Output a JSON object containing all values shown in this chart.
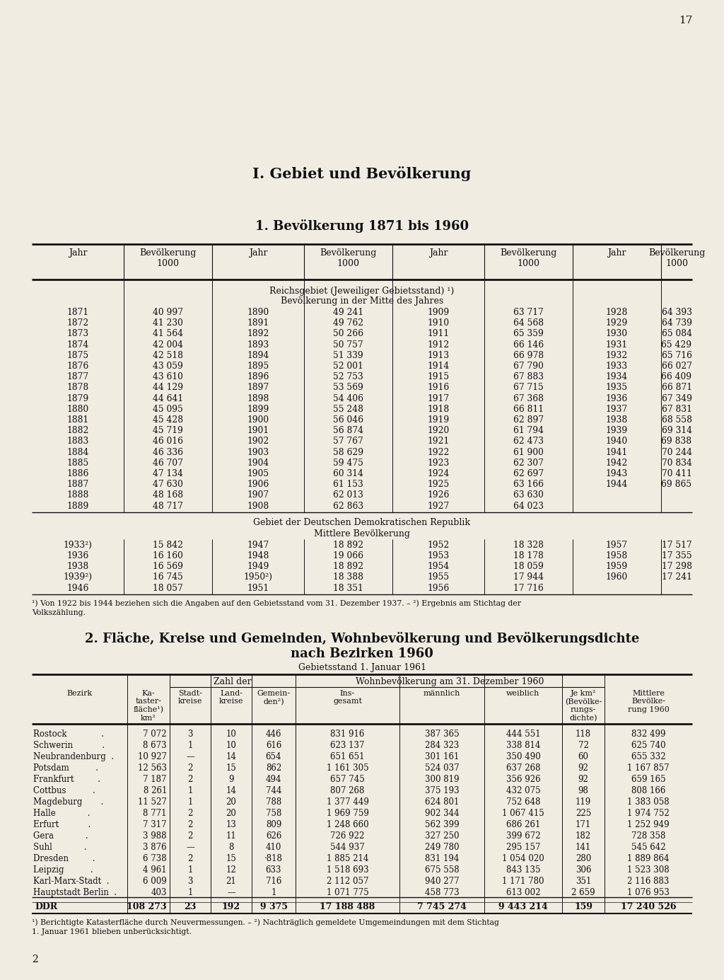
{
  "page_number": "17",
  "chapter_title": "I. Gebiet und Bevölkerung",
  "section1_title": "1. Bevölkerung 1871 bis 1960",
  "table1_headers_top": [
    "Jahr",
    "Bevölkerung\n1000",
    "Jahr",
    "Bevölkerung\n1000",
    "Jahr",
    "Bevölkerung\n1000",
    "Jahr",
    "Bevölkerung\n1000"
  ],
  "reichsgebiet_label": "Reichsgebiet (Jeweiliger Gebietsstand) ¹)",
  "bevoelkerung_label": "Bevölkerung in der Mitte des Jahres",
  "table1_data_col1": [
    [
      "1871",
      "40 997"
    ],
    [
      "1872",
      "41 230"
    ],
    [
      "1873",
      "41 564"
    ],
    [
      "1874",
      "42 004"
    ],
    [
      "1875",
      "42 518"
    ],
    [
      "1876",
      "43 059"
    ],
    [
      "1877",
      "43 610"
    ],
    [
      "1878",
      "44 129"
    ],
    [
      "1879",
      "44 641"
    ],
    [
      "1880",
      "45 095"
    ],
    [
      "1881",
      "45 428"
    ],
    [
      "1882",
      "45 719"
    ],
    [
      "1883",
      "46 016"
    ],
    [
      "1884",
      "46 336"
    ],
    [
      "1885",
      "46 707"
    ],
    [
      "1886",
      "47 134"
    ],
    [
      "1887",
      "47 630"
    ],
    [
      "1888",
      "48 168"
    ],
    [
      "1889",
      "48 717"
    ]
  ],
  "table1_data_col2": [
    [
      "1890",
      "49 241"
    ],
    [
      "1891",
      "49 762"
    ],
    [
      "1892",
      "50 266"
    ],
    [
      "1893",
      "50 757"
    ],
    [
      "1894",
      "51 339"
    ],
    [
      "1895",
      "52 001"
    ],
    [
      "1896",
      "52 753"
    ],
    [
      "1897",
      "53 569"
    ],
    [
      "1898",
      "54 406"
    ],
    [
      "1899",
      "55 248"
    ],
    [
      "1900",
      "56 046"
    ],
    [
      "1901",
      "56 874"
    ],
    [
      "1902",
      "57 767"
    ],
    [
      "1903",
      "58 629"
    ],
    [
      "1904",
      "59 475"
    ],
    [
      "1905",
      "60 314"
    ],
    [
      "1906",
      "61 153"
    ],
    [
      "1907",
      "62 013"
    ],
    [
      "1908",
      "62 863"
    ]
  ],
  "table1_data_col3": [
    [
      "1909",
      "63 717"
    ],
    [
      "1910",
      "64 568"
    ],
    [
      "1911",
      "65 359"
    ],
    [
      "1912",
      "66 146"
    ],
    [
      "1913",
      "66 978"
    ],
    [
      "1914",
      "67 790"
    ],
    [
      "1915",
      "67 883"
    ],
    [
      "1916",
      "67 715"
    ],
    [
      "1917",
      "67 368"
    ],
    [
      "1918",
      "66 811"
    ],
    [
      "1919",
      "62 897"
    ],
    [
      "1920",
      "61 794"
    ],
    [
      "1921",
      "62 473"
    ],
    [
      "1922",
      "61 900"
    ],
    [
      "1923",
      "62 307"
    ],
    [
      "1924",
      "62 697"
    ],
    [
      "1925",
      "63 166"
    ],
    [
      "1926",
      "63 630"
    ],
    [
      "1927",
      "64 023"
    ]
  ],
  "table1_data_col4": [
    [
      "1928",
      "64 393"
    ],
    [
      "1929",
      "64 739"
    ],
    [
      "1930",
      "65 084"
    ],
    [
      "1931",
      "65 429"
    ],
    [
      "1932",
      "65 716"
    ],
    [
      "1933",
      "66 027"
    ],
    [
      "1934",
      "66 409"
    ],
    [
      "1935",
      "66 871"
    ],
    [
      "1936",
      "67 349"
    ],
    [
      "1937",
      "67 831"
    ],
    [
      "1938",
      "68 558"
    ],
    [
      "1939",
      "69 314"
    ],
    [
      "1940",
      "69 838"
    ],
    [
      "1941",
      "70 244"
    ],
    [
      "1942",
      "70 834"
    ],
    [
      "1943",
      "70 411"
    ],
    [
      "1944",
      "69 865"
    ],
    [
      "",
      ""
    ],
    [
      "",
      ""
    ]
  ],
  "ddr_label": "Gebiet der Deutschen Demokratischen Republik",
  "mittlere_label": "Mittlere Bevölkerung",
  "table2_data_col1": [
    [
      "1933²)",
      "15 842"
    ],
    [
      "1936",
      "16 160"
    ],
    [
      "1938",
      "16 569"
    ],
    [
      "1939²)",
      "16 745"
    ],
    [
      "1946",
      "18 057"
    ]
  ],
  "table2_data_col2": [
    [
      "1947",
      "18 892"
    ],
    [
      "1948",
      "19 066"
    ],
    [
      "1949",
      "18 892"
    ],
    [
      "1950²)",
      "18 388"
    ],
    [
      "1951",
      "18 351"
    ]
  ],
  "table2_data_col3": [
    [
      "1952",
      "18 328"
    ],
    [
      "1953",
      "18 178"
    ],
    [
      "1954",
      "18 059"
    ],
    [
      "1955",
      "17 944"
    ],
    [
      "1956",
      "17 716"
    ]
  ],
  "table2_data_col4": [
    [
      "1957",
      "17 517"
    ],
    [
      "1958",
      "17 355"
    ],
    [
      "1959",
      "17 298"
    ],
    [
      "1960",
      "17 241"
    ],
    [
      "",
      ""
    ]
  ],
  "footnote1_line1": "¹) Von 1922 bis 1944 beziehen sich die Angaben auf den Gebietsstand vom 31. Dezember 1937. – ²) Ergebnis am Stichtag der",
  "footnote1_line2": "Volkszählung.",
  "section2_title_line1": "2. Fläche, Kreise und Gemeinden, Wohnbevölkerung und Bevölkerungsdichte",
  "section2_title_line2": "nach Bezirken 1960",
  "section2_subtitle": "Gebietsstand 1. Januar 1961",
  "table3_col_headers": {
    "bezirk": "Bezirk",
    "kataster": "Ka-\ntaster-\nfläche¹)\nkm²",
    "zahl_header": "Zahl der",
    "stadtkreise": "Stadt-\nkreise",
    "landkreise": "Land-\nkreise",
    "gemeinden": "Gemein-\nden²)",
    "wohn_header": "Wohnbevölkerung am 31. Dezember 1960",
    "insgesamt": "Ins-\ngesamt",
    "maennlich": "männlich",
    "weiblich": "weiblich",
    "jekm2": "Je km²\n(Bevölke-\nrungs-\ndichte)",
    "mittlere": "Mittlere\nBevölke-\nrung 1960"
  },
  "table3_data": [
    [
      "Rostock             .",
      "7 072",
      "3",
      "10",
      "446",
      "831 916",
      "387 365",
      "444 551",
      "118",
      "832 499"
    ],
    [
      "Schwerin           .",
      "8 673",
      "1",
      "10",
      "616",
      "623 137",
      "284 323",
      "338 814",
      "72",
      "625 740"
    ],
    [
      "Neubrandenburg  .",
      "10 927",
      "—",
      "14",
      "654",
      "651 651",
      "301 161",
      "350 490",
      "60",
      "655 332"
    ],
    [
      "Potsdam          .",
      "12 563",
      "2",
      "15",
      "862",
      "1 161 305",
      "524 037",
      "637 268",
      "92",
      "1 167 857"
    ],
    [
      "Frankfurt         .",
      "7 187",
      "2",
      "9",
      "494",
      "657 745",
      "300 819",
      "356 926",
      "92",
      "659 165"
    ],
    [
      "Cottbus          .",
      "8 261",
      "1",
      "14",
      "744",
      "807 268",
      "375 193",
      "432 075",
      "98",
      "808 166"
    ],
    [
      "Magdeburg       .",
      "11 527",
      "1",
      "20",
      "788",
      "1 377 449",
      "624 801",
      "752 648",
      "119",
      "1 383 058"
    ],
    [
      "Halle            .",
      "8 771",
      "2",
      "20",
      "758",
      "1 969 759",
      "902 344",
      "1 067 415",
      "225",
      "1 974 752"
    ],
    [
      "Erfurt           .",
      "7 317",
      "2",
      "13",
      "809",
      "1 248 660",
      "562 399",
      "686 261",
      "171",
      "1 252 949"
    ],
    [
      "Gera            .",
      "3 988",
      "2",
      "11",
      "626",
      "726 922",
      "327 250",
      "399 672",
      "182",
      "728 358"
    ],
    [
      "Suhl            .",
      "3 876",
      "—",
      "8",
      "410",
      "544 937",
      "249 780",
      "295 157",
      "141",
      "545 642"
    ],
    [
      "Dresden         .",
      "6 738",
      "2",
      "15",
      "·818",
      "1 885 214",
      "831 194",
      "1 054 020",
      "280",
      "1 889 864"
    ],
    [
      "Leipzig          .",
      "4 961",
      "1",
      "12",
      "633",
      "1 518 693",
      "675 558",
      "843 135",
      "306",
      "1 523 308"
    ],
    [
      "Karl-Marx-Stadt  .",
      "6 009",
      "3",
      "21",
      "716",
      "2 112 057",
      "940 277",
      "1 171 780",
      "351",
      "2 116 883"
    ],
    [
      "Hauptstadt Berlin  .",
      "403",
      "1",
      "—",
      "1",
      "1 071 775",
      "458 773",
      "613 002",
      "2 659",
      "1 076 953"
    ]
  ],
  "table3_total": [
    "DDR",
    "108 273",
    "23",
    "192",
    "9 375",
    "17 188 488",
    "7 745 274",
    "9 443 214",
    "159",
    "17 240 526"
  ],
  "footnote3_line1": "¹) Berichtigte Katasterfläche durch Neuvermessungen. – ²) Nachträglich gemeldete Umgemeindungen mit dem Stichtag",
  "footnote3_line2": "1. Januar 1961 blieben unberücksichtigt.",
  "bottom_number": "2",
  "bg_color": "#f0ece2",
  "text_color": "#111111"
}
